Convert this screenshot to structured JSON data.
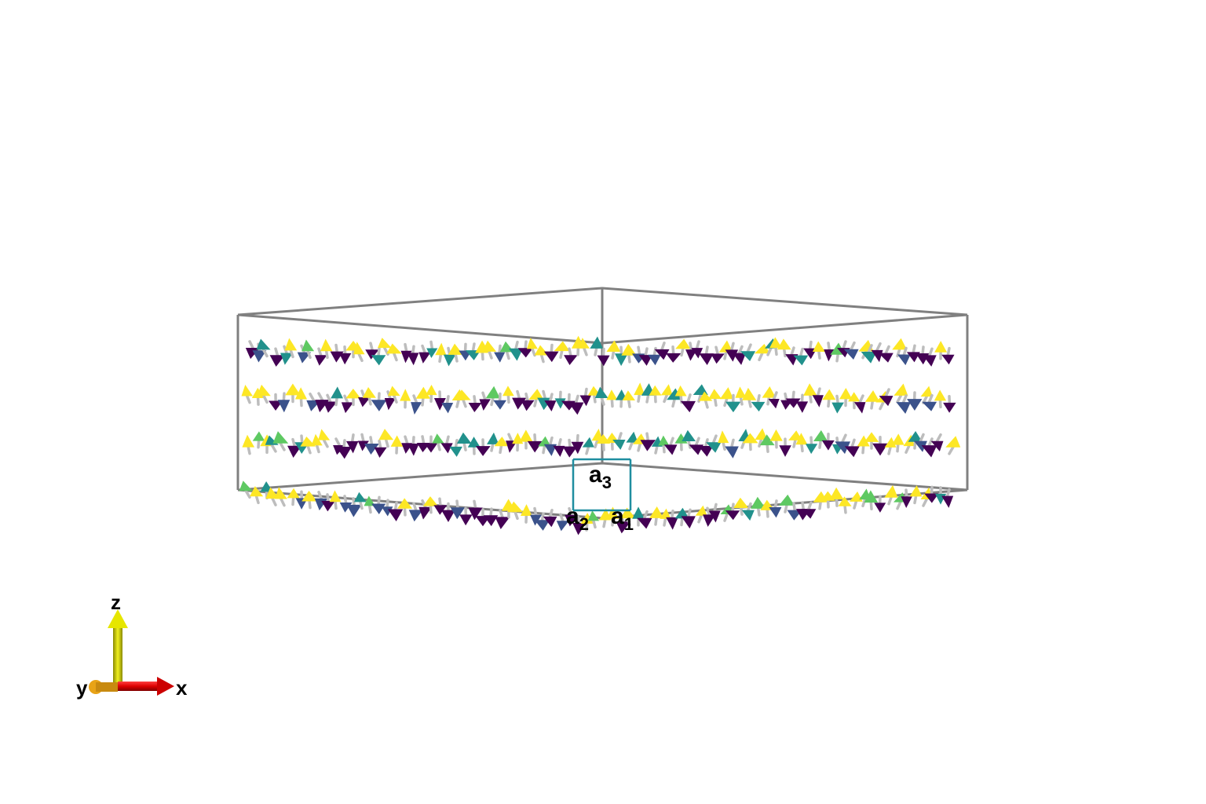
{
  "lattice_labels": {
    "a1": {
      "base": "a",
      "sub": "1"
    },
    "a2": {
      "base": "a",
      "sub": "2"
    },
    "a3": {
      "base": "a",
      "sub": "3"
    }
  },
  "axes": {
    "x": {
      "label": "x",
      "color": "#dd0000"
    },
    "y": {
      "label": "y",
      "color": "#e8a317"
    },
    "z": {
      "label": "z",
      "color": "#d4d400"
    }
  },
  "colors": {
    "supercell_box": "#808080",
    "unit_cell": "#1f8ea0",
    "arrow_shaft": "#bdbdbd",
    "spin_colormap": [
      "#440154",
      "#3b528b",
      "#21918c",
      "#5ec962",
      "#fde725"
    ]
  },
  "layers": 4
}
